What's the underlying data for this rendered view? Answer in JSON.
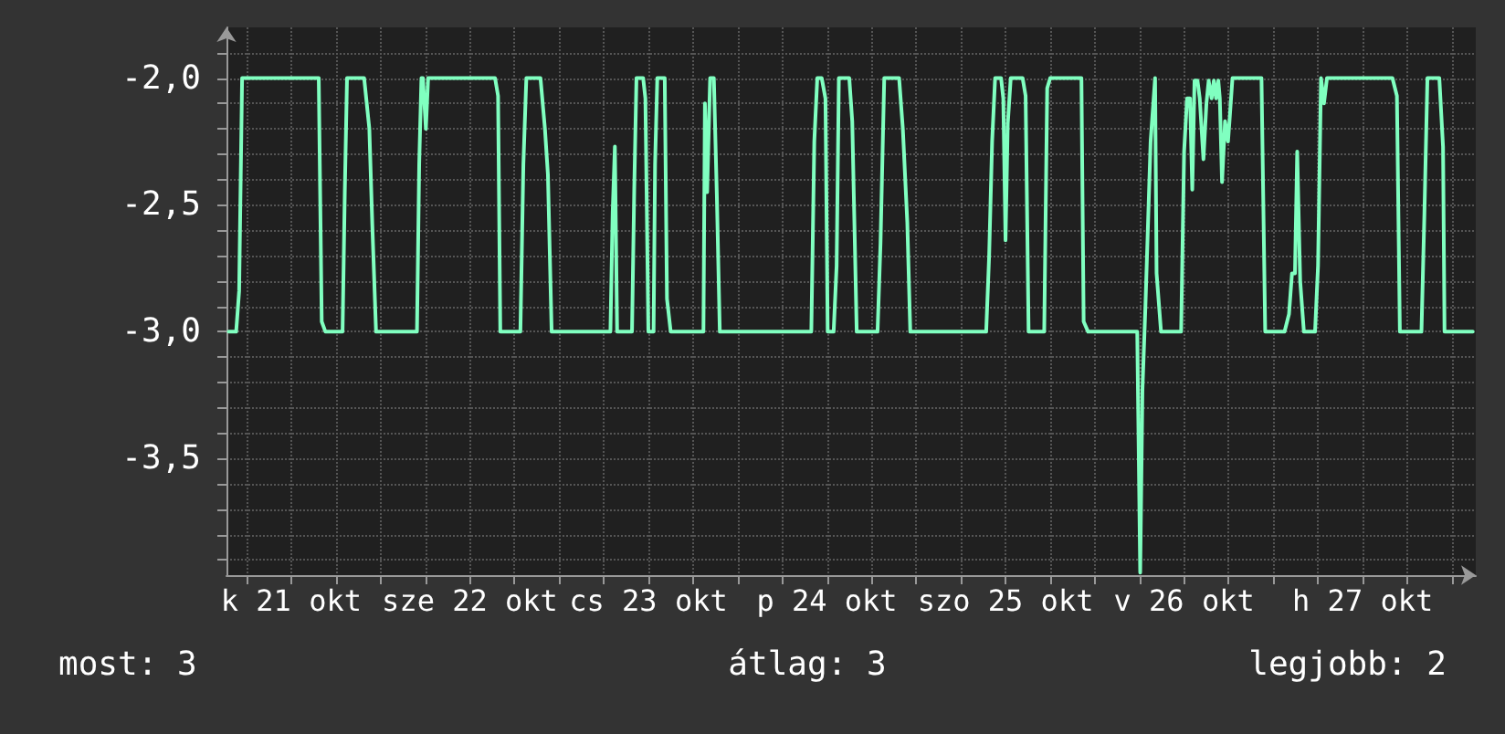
{
  "chart_data": {
    "type": "line",
    "color": "#80ffc0",
    "marker": "none",
    "line_style": "solid",
    "grid": true,
    "x": [
      "--10-21T03:36",
      "--10-21T04:36",
      "--10-21T05:00",
      "--10-21T05:24",
      "--10-21T15:42",
      "--10-21T16:06",
      "--10-21T16:36",
      "--10-21T18:54",
      "--10-21T19:12",
      "--10-21T19:30",
      "--10-21T21:48",
      "--10-21T22:30",
      "--10-21T22:54",
      "--10-21T23:24",
      "--10-22T04:54",
      "--10-22T05:12",
      "--10-22T05:30",
      "--10-22T05:42",
      "--10-22T06:06",
      "--10-22T06:24",
      "--10-22T15:24",
      "--10-22T15:48",
      "--10-22T16:06",
      "--10-22T18:48",
      "--10-22T19:12",
      "--10-22T19:36",
      "--10-22T21:30",
      "--10-22T22:06",
      "--10-22T22:30",
      "--10-22T23:00",
      "--10-23T06:54",
      "--10-23T07:12",
      "--10-23T07:30",
      "--10-23T07:48",
      "--10-23T09:48",
      "--10-23T10:06",
      "--10-23T10:24",
      "--10-23T11:18",
      "--10-23T11:36",
      "--10-23T12:00",
      "--10-23T12:42",
      "--10-23T12:54",
      "--10-23T13:12",
      "--10-23T14:12",
      "--10-23T14:30",
      "--10-23T15:00",
      "--10-23T19:24",
      "--10-23T19:36",
      "--10-23T19:54",
      "--10-23T20:18",
      "--10-23T20:48",
      "--10-23T21:12",
      "--10-23T21:36",
      "--10-24T09:54",
      "--10-24T10:18",
      "--10-24T10:42",
      "--10-24T11:18",
      "--10-24T11:48",
      "--10-24T12:06",
      "--10-24T12:54",
      "--10-24T13:18",
      "--10-24T13:36",
      "--10-24T15:00",
      "--10-24T15:24",
      "--10-24T16:00",
      "--10-24T18:48",
      "--10-24T19:12",
      "--10-24T19:42",
      "--10-24T21:42",
      "--10-24T22:12",
      "--10-24T22:48",
      "--10-24T23:12",
      "--10-25T09:24",
      "--10-25T09:48",
      "--10-25T10:12",
      "--10-25T10:36",
      "--10-25T11:24",
      "--10-25T11:42",
      "--10-25T12:00",
      "--10-25T12:18",
      "--10-25T12:42",
      "--10-25T14:18",
      "--10-25T14:42",
      "--10-25T15:06",
      "--10-25T17:12",
      "--10-25T17:36",
      "--10-25T18:00",
      "--10-25T22:12",
      "--10-25T22:30",
      "--10-25T23:06",
      "--10-26T05:42",
      "--10-26T06:06",
      "--10-26T06:24",
      "--10-26T06:48",
      "--10-26T07:30",
      "--10-26T08:06",
      "--10-26T08:18",
      "--10-26T08:54",
      "--10-26T11:36",
      "--10-26T12:00",
      "--10-26T12:24",
      "--10-26T12:48",
      "--10-26T13:06",
      "--10-26T13:24",
      "--10-26T13:48",
      "--10-26T14:06",
      "--10-26T14:36",
      "--10-26T15:00",
      "--10-26T15:18",
      "--10-26T15:42",
      "--10-26T16:00",
      "--10-26T16:18",
      "--10-26T16:36",
      "--10-26T16:48",
      "--10-26T17:06",
      "--10-26T17:30",
      "--10-26T17:54",
      "--10-26T18:06",
      "--10-26T18:30",
      "--10-26T22:24",
      "--10-26T22:54",
      "--10-27T01:30",
      "--10-27T02:06",
      "--10-27T02:30",
      "--10-27T02:54",
      "--10-27T03:12",
      "--10-27T03:36",
      "--10-27T04:06",
      "--10-27T05:36",
      "--10-27T06:00",
      "--10-27T06:24",
      "--10-27T06:48",
      "--10-27T07:12",
      "--10-27T16:00",
      "--10-27T16:36",
      "--10-27T17:00",
      "--10-27T19:54",
      "--10-27T20:18",
      "--10-27T20:42",
      "--10-27T22:18",
      "--10-27T22:48",
      "--10-27T23:00",
      "--10-28T02:48"
    ],
    "values": [
      -3.0,
      -3.0,
      -2.84,
      -2.0,
      -2.0,
      -2.96,
      -3.0,
      -3.0,
      -2.45,
      -2.0,
      -2.0,
      -2.2,
      -2.58,
      -3.0,
      -3.0,
      -2.34,
      -2.0,
      -2.0,
      -2.2,
      -2.0,
      -2.0,
      -2.07,
      -3.0,
      -3.0,
      -2.34,
      -2.0,
      -2.0,
      -2.2,
      -2.38,
      -3.0,
      -3.0,
      -2.53,
      -2.27,
      -3.0,
      -3.0,
      -2.44,
      -2.0,
      -2.0,
      -2.08,
      -3.0,
      -3.0,
      -2.34,
      -2.0,
      -2.0,
      -2.87,
      -3.0,
      -3.0,
      -2.1,
      -2.45,
      -2.0,
      -2.0,
      -2.46,
      -3.0,
      -3.0,
      -2.25,
      -2.0,
      -2.0,
      -2.08,
      -3.0,
      -3.0,
      -2.74,
      -2.0,
      -2.0,
      -2.17,
      -3.0,
      -3.0,
      -2.65,
      -2.0,
      -2.0,
      -2.2,
      -2.57,
      -3.0,
      -3.0,
      -2.7,
      -2.25,
      -2.0,
      -2.0,
      -2.08,
      -2.64,
      -2.18,
      -2.0,
      -2.0,
      -2.07,
      -3.0,
      -3.0,
      -2.04,
      -2.0,
      -2.0,
      -2.96,
      -3.0,
      -3.0,
      -3.95,
      -3.23,
      -2.9,
      -2.25,
      -2.0,
      -2.77,
      -3.0,
      -3.0,
      -2.29,
      -2.08,
      -2.08,
      -2.44,
      -2.01,
      -2.01,
      -2.08,
      -2.32,
      -2.1,
      -2.01,
      -2.08,
      -2.01,
      -2.08,
      -2.01,
      -2.08,
      -2.41,
      -2.17,
      -2.25,
      -2.17,
      -2.0,
      -2.0,
      -3.0,
      -3.0,
      -2.93,
      -2.77,
      -2.77,
      -2.29,
      -2.8,
      -3.0,
      -3.0,
      -2.74,
      -2.0,
      -2.1,
      -2.0,
      -2.0,
      -2.07,
      -3.0,
      -3.0,
      -2.53,
      -2.0,
      -2.0,
      -2.27,
      -3.0,
      -3.0
    ],
    "xlim": [
      "--10-21T03:18",
      "--10-28T03:12"
    ],
    "xticks": [
      {
        "value": "--10-21T06:00",
        "label": null
      },
      {
        "value": "--10-21T12:00",
        "label": "k 21 okt"
      },
      {
        "value": "--10-21T18:00",
        "label": null
      },
      {
        "value": "--10-22T00:00",
        "label": null
      },
      {
        "value": "--10-22T06:00",
        "label": null
      },
      {
        "value": "--10-22T12:00",
        "label": "sze 22 okt"
      },
      {
        "value": "--10-22T18:00",
        "label": null
      },
      {
        "value": "--10-23T00:00",
        "label": null
      },
      {
        "value": "--10-23T06:00",
        "label": null
      },
      {
        "value": "--10-23T12:00",
        "label": "cs 23 okt"
      },
      {
        "value": "--10-23T18:00",
        "label": null
      },
      {
        "value": "--10-24T00:00",
        "label": null
      },
      {
        "value": "--10-24T06:00",
        "label": null
      },
      {
        "value": "--10-24T12:00",
        "label": "p 24 okt"
      },
      {
        "value": "--10-24T18:00",
        "label": null
      },
      {
        "value": "--10-25T00:00",
        "label": null
      },
      {
        "value": "--10-25T06:00",
        "label": null
      },
      {
        "value": "--10-25T12:00",
        "label": "szo 25 okt"
      },
      {
        "value": "--10-25T18:00",
        "label": null
      },
      {
        "value": "--10-26T00:00",
        "label": null
      },
      {
        "value": "--10-26T06:00",
        "label": null
      },
      {
        "value": "--10-26T12:00",
        "label": "v 26 okt"
      },
      {
        "value": "--10-26T18:00",
        "label": null
      },
      {
        "value": "--10-27T00:00",
        "label": null
      },
      {
        "value": "--10-27T06:00",
        "label": null
      },
      {
        "value": "--10-27T12:00",
        "label": "h 27 okt"
      },
      {
        "value": "--10-27T18:00",
        "label": null
      },
      {
        "value": "--10-28T00:00",
        "label": null
      }
    ],
    "ylim": [
      -3.96,
      -1.8
    ],
    "yticks": [
      {
        "value": -3.9,
        "label": null
      },
      {
        "value": -3.8,
        "label": null
      },
      {
        "value": -3.7,
        "label": null
      },
      {
        "value": -3.6,
        "label": null
      },
      {
        "value": -3.5,
        "label": "-3,5"
      },
      {
        "value": -3.4,
        "label": null
      },
      {
        "value": -3.3,
        "label": null
      },
      {
        "value": -3.2,
        "label": null
      },
      {
        "value": -3.1,
        "label": null
      },
      {
        "value": -3.0,
        "label": "-3,0"
      },
      {
        "value": -2.9,
        "label": null
      },
      {
        "value": -2.8,
        "label": null
      },
      {
        "value": -2.7,
        "label": null
      },
      {
        "value": -2.6,
        "label": null
      },
      {
        "value": -2.5,
        "label": "-2,5"
      },
      {
        "value": -2.4,
        "label": null
      },
      {
        "value": -2.3,
        "label": null
      },
      {
        "value": -2.2,
        "label": null
      },
      {
        "value": -2.1,
        "label": null
      },
      {
        "value": -2.0,
        "label": "-2,0"
      },
      {
        "value": -1.9,
        "label": null
      }
    ],
    "annotations": [
      "most: 3",
      "átlag: 3",
      "legjobb: 2"
    ]
  }
}
